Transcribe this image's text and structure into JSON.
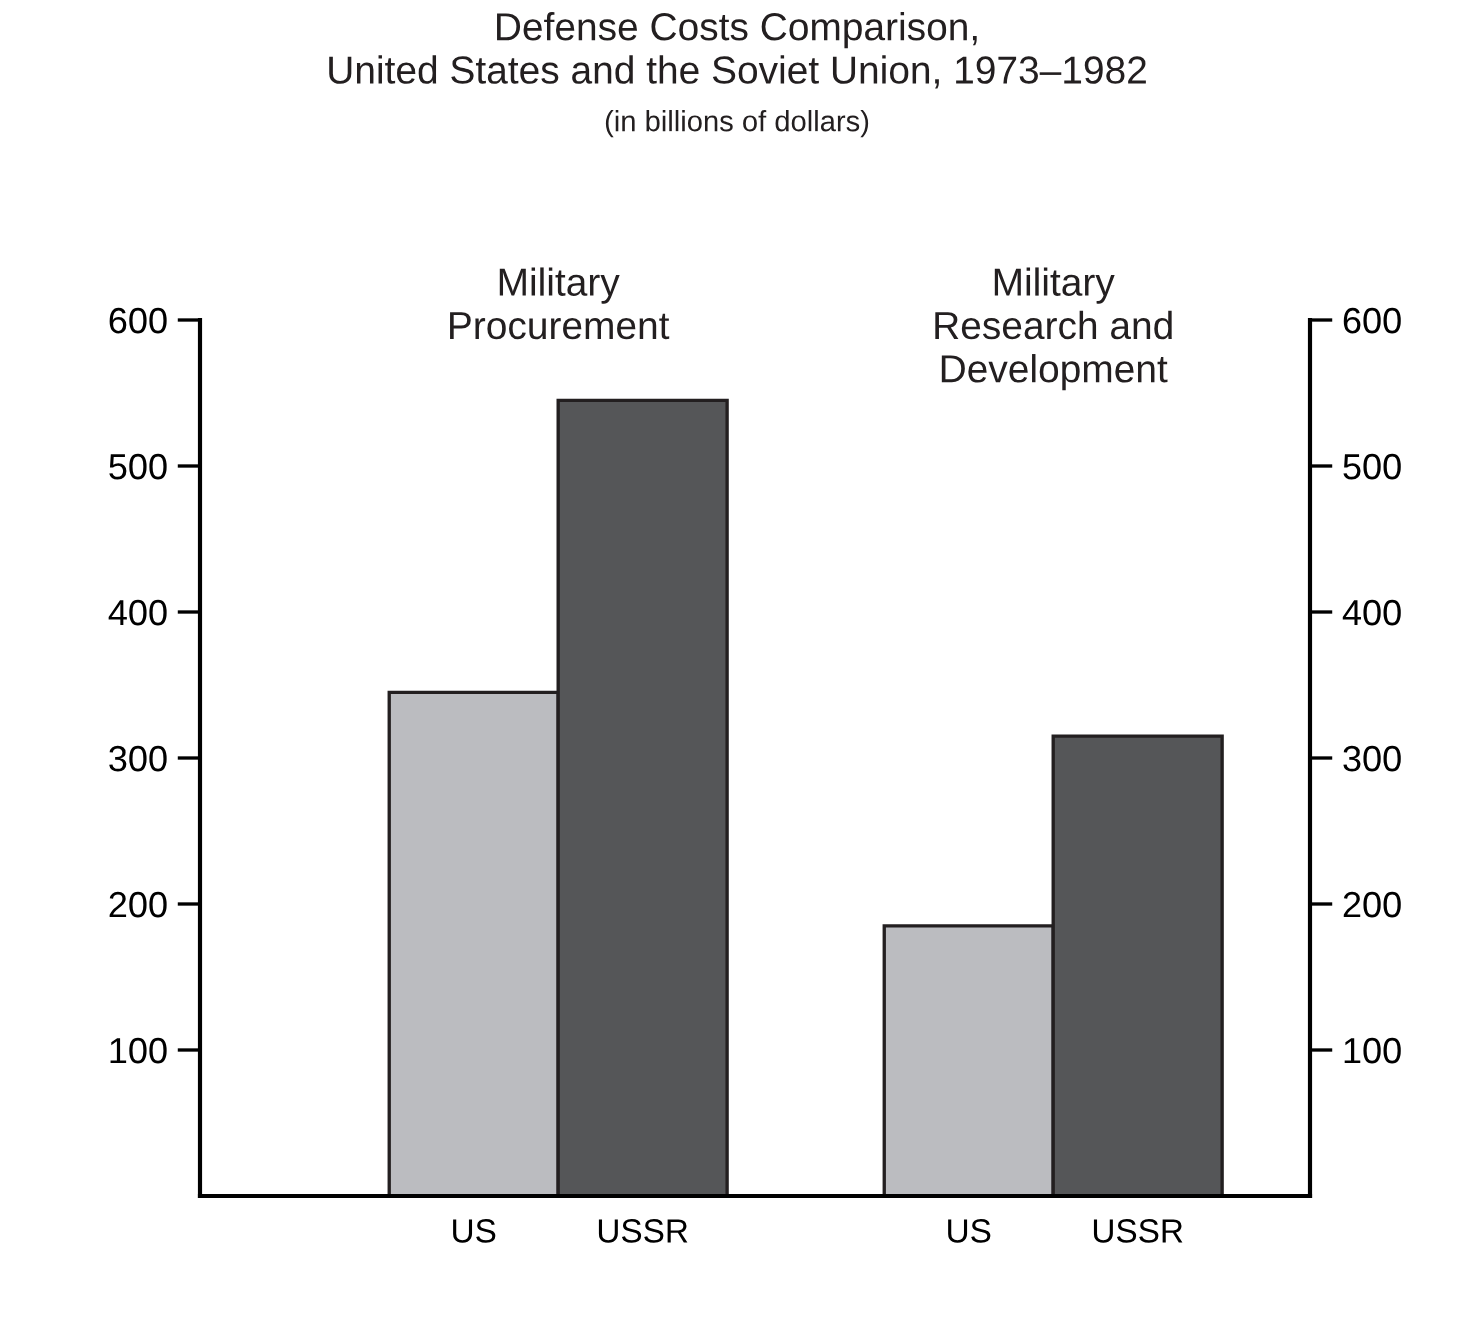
{
  "chart_data": {
    "type": "bar",
    "title": "Defense Costs Comparison,\nUnited States and the Soviet Union, 1973–1982",
    "subtitle": "(in billions of dollars)",
    "categories": [
      "US",
      "USSR",
      "US",
      "USSR"
    ],
    "values": [
      345,
      545,
      185,
      315
    ],
    "colors": [
      "#bbbcc0",
      "#555658",
      "#bbbcc0",
      "#555658"
    ],
    "annotations": [
      "Military\nProcurement",
      "Military\nResearch and\nDevelopment"
    ],
    "ylim": [
      0,
      600
    ],
    "yticks": [
      100,
      200,
      300,
      400,
      500,
      600
    ],
    "y2lim": [
      0,
      600
    ],
    "y2ticks": [
      100,
      200,
      300,
      400,
      500,
      600
    ],
    "grid": false,
    "legend": false
  }
}
